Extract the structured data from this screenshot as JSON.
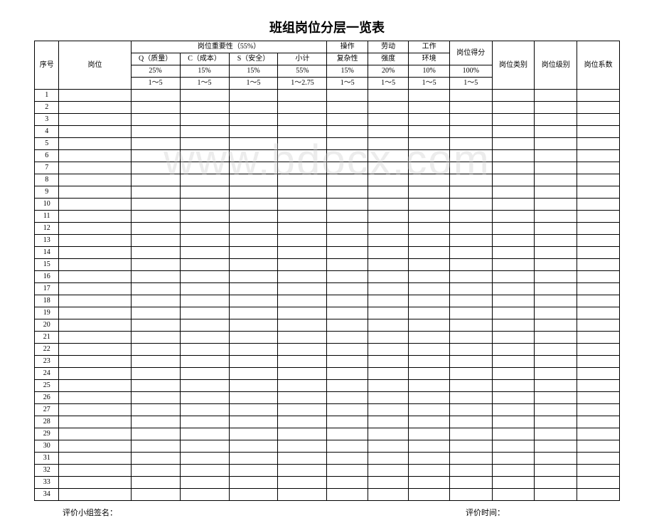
{
  "title": "班组岗位分层一览表",
  "watermark": "www.bdocx.com",
  "header": {
    "seq": "序号",
    "post": "岗位",
    "importance_group": "岗位重要性（55%）",
    "q": "Q（质量）",
    "c": "C（成本）",
    "s": "S（安全）",
    "subtotal": "小计",
    "operation_l1": "操作",
    "operation_l2": "复杂性",
    "labor_l1": "劳动",
    "labor_l2": "强度",
    "env_l1": "工作",
    "env_l2": "环境",
    "score": "岗位得分",
    "type": "岗位类别",
    "level": "岗位级别",
    "coef": "岗位系数",
    "pct_q": "25%",
    "pct_c": "15%",
    "pct_s": "15%",
    "pct_sub": "55%",
    "pct_op": "15%",
    "pct_lab": "20%",
    "pct_env": "10%",
    "pct_score": "100%",
    "range_15": "1～5",
    "range_1275": "1～2.75"
  },
  "row_count": 34,
  "footer": {
    "sign_label": "评价小组签名：",
    "time_label": "评价时间："
  }
}
